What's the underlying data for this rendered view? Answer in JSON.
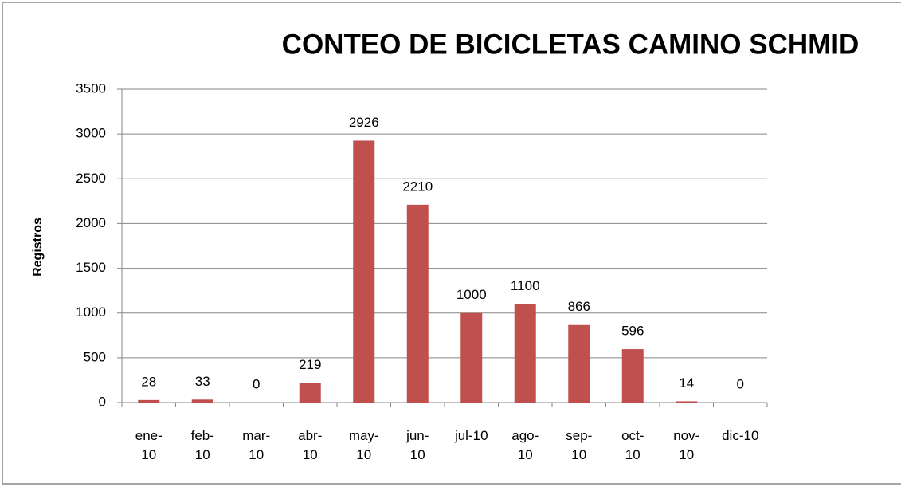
{
  "chart_data": {
    "type": "bar",
    "title": "CONTEO DE BICICLETAS CAMINO SCHMID",
    "y_label": "Registros",
    "categories": [
      "ene-10",
      "feb-10",
      "mar-10",
      "abr-10",
      "may-10",
      "jun-10",
      "jul-10",
      "ago-10",
      "sep-10",
      "oct-10",
      "nov-10",
      "dic-10"
    ],
    "values": [
      28,
      33,
      0,
      219,
      2926,
      2210,
      1000,
      1100,
      866,
      596,
      14,
      0
    ],
    "color": "#c0504d",
    "ylim": [
      0,
      3500
    ],
    "yticks": [
      0,
      500,
      1000,
      1500,
      2000,
      2500,
      3000,
      3500
    ],
    "grid": true
  }
}
